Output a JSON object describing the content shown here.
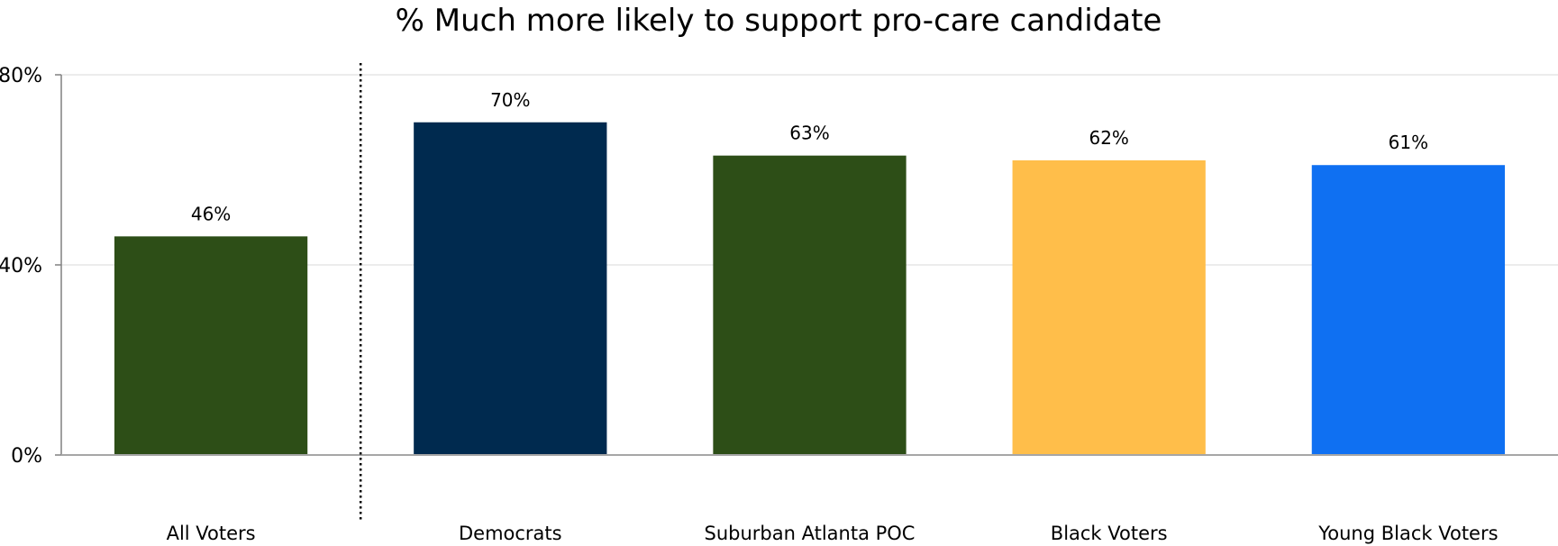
{
  "chart_data": {
    "type": "bar",
    "title": "% Much more likely to support pro-care candidate",
    "categories": [
      "All Voters",
      "Democrats",
      "Suburban Atlanta POC",
      "Black Voters",
      "Young Black Voters"
    ],
    "values": [
      46,
      70,
      63,
      62,
      61
    ],
    "data_labels": [
      "46%",
      "70%",
      "63%",
      "62%",
      "61%"
    ],
    "colors": [
      "#2D4E17",
      "#002A4F",
      "#2D4E17",
      "#FFBE4A",
      "#0F70F2"
    ],
    "ylim": [
      0,
      80
    ],
    "yticks": [
      0,
      40,
      80
    ],
    "ytick_labels": [
      "0%",
      "40%",
      "80%"
    ],
    "grid": true,
    "divider_after_category": 0,
    "legend": "none"
  }
}
